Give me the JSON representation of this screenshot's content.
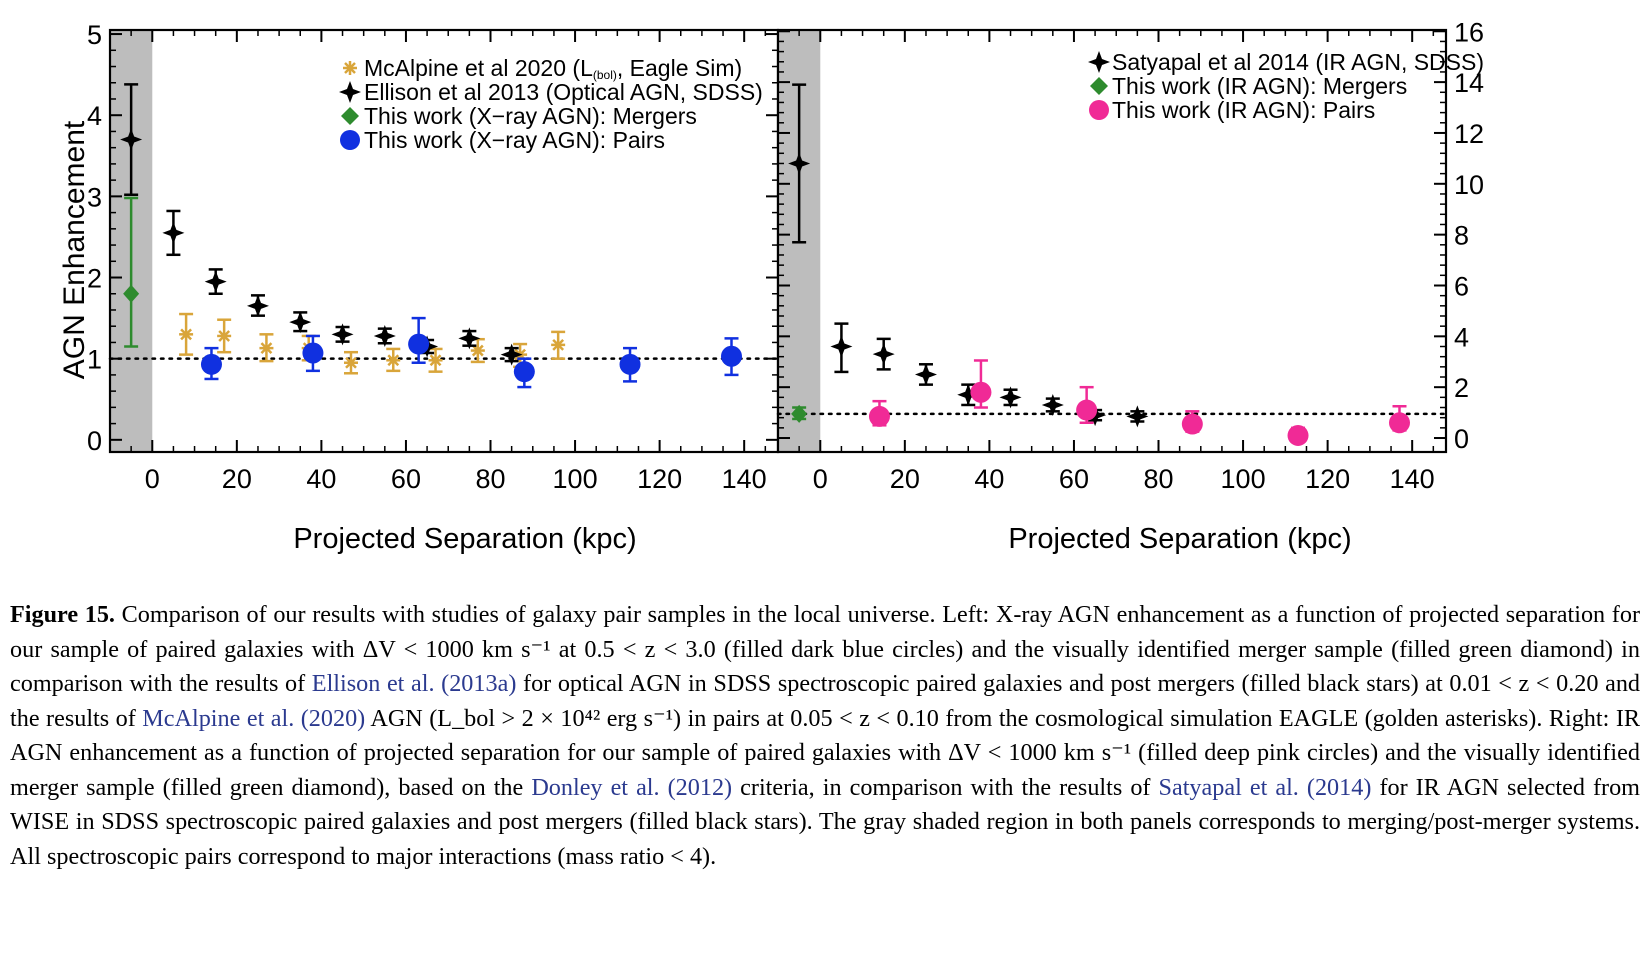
{
  "chart_data": [
    {
      "type": "scatter",
      "panel": "left",
      "xlabel": "Projected Separation (kpc)",
      "ylabel": "AGN Enhancement",
      "xlim": [
        -10,
        148
      ],
      "ylim": [
        -0.15,
        5.05
      ],
      "xticks": [
        0,
        20,
        40,
        60,
        80,
        100,
        120,
        140
      ],
      "yticks": [
        0,
        1,
        2,
        3,
        4,
        5
      ],
      "shaded_region": [
        -10,
        0
      ],
      "reference_line": 1,
      "legend_position": "top-center",
      "series": [
        {
          "name": "McAlpine et al 2020 (L(bol), Eagle Sim)",
          "marker": "asterisk",
          "color": "#d9a53a",
          "points": [
            {
              "x": 8,
              "y": 1.3,
              "lo": 1.05,
              "hi": 1.55
            },
            {
              "x": 17,
              "y": 1.28,
              "lo": 1.08,
              "hi": 1.48
            },
            {
              "x": 27,
              "y": 1.13,
              "lo": 0.97,
              "hi": 1.3
            },
            {
              "x": 37,
              "y": 1.13,
              "lo": 0.98,
              "hi": 1.28
            },
            {
              "x": 47,
              "y": 0.95,
              "lo": 0.82,
              "hi": 1.08
            },
            {
              "x": 57,
              "y": 0.98,
              "lo": 0.85,
              "hi": 1.12
            },
            {
              "x": 67,
              "y": 0.98,
              "lo": 0.84,
              "hi": 1.12
            },
            {
              "x": 77,
              "y": 1.1,
              "lo": 0.96,
              "hi": 1.24
            },
            {
              "x": 87,
              "y": 1.05,
              "lo": 0.9,
              "hi": 1.18
            },
            {
              "x": 96,
              "y": 1.17,
              "lo": 1.0,
              "hi": 1.33
            }
          ]
        },
        {
          "name": "Ellison et al 2013 (Optical AGN, SDSS)",
          "marker": "star",
          "color": "#000000",
          "points": [
            {
              "x": -5,
              "y": 3.7,
              "lo": 3.02,
              "hi": 4.38
            },
            {
              "x": 5,
              "y": 2.55,
              "lo": 2.28,
              "hi": 2.82
            },
            {
              "x": 15,
              "y": 1.95,
              "lo": 1.8,
              "hi": 2.1
            },
            {
              "x": 25,
              "y": 1.65,
              "lo": 1.53,
              "hi": 1.78
            },
            {
              "x": 35,
              "y": 1.45,
              "lo": 1.34,
              "hi": 1.57
            },
            {
              "x": 45,
              "y": 1.3,
              "lo": 1.21,
              "hi": 1.39
            },
            {
              "x": 55,
              "y": 1.28,
              "lo": 1.19,
              "hi": 1.37
            },
            {
              "x": 65,
              "y": 1.15,
              "lo": 1.07,
              "hi": 1.23
            },
            {
              "x": 75,
              "y": 1.25,
              "lo": 1.16,
              "hi": 1.34
            },
            {
              "x": 85,
              "y": 1.05,
              "lo": 0.97,
              "hi": 1.13
            }
          ]
        },
        {
          "name": "This work (X−ray AGN): Mergers",
          "marker": "diamond",
          "color": "#2e8b2e",
          "points": [
            {
              "x": -5,
              "y": 1.8,
              "lo": 1.15,
              "hi": 2.98
            }
          ]
        },
        {
          "name": "This work (X−ray AGN): Pairs",
          "marker": "circle",
          "color": "#1030e0",
          "points": [
            {
              "x": 14,
              "y": 0.93,
              "lo": 0.75,
              "hi": 1.13
            },
            {
              "x": 38,
              "y": 1.07,
              "lo": 0.85,
              "hi": 1.28
            },
            {
              "x": 63,
              "y": 1.18,
              "lo": 0.95,
              "hi": 1.5
            },
            {
              "x": 88,
              "y": 0.84,
              "lo": 0.65,
              "hi": 1.0
            },
            {
              "x": 113,
              "y": 0.93,
              "lo": 0.72,
              "hi": 1.13
            },
            {
              "x": 137,
              "y": 1.03,
              "lo": 0.8,
              "hi": 1.25
            }
          ]
        }
      ]
    },
    {
      "type": "scatter",
      "panel": "right",
      "xlabel": "Projected Separation (kpc)",
      "ylabel": "",
      "xlim": [
        -10,
        148
      ],
      "ylim": [
        -0.55,
        16.05
      ],
      "xticks": [
        0,
        20,
        40,
        60,
        80,
        100,
        120,
        140
      ],
      "yticks": [
        0,
        2,
        4,
        6,
        8,
        10,
        12,
        14,
        16
      ],
      "shaded_region": [
        -10,
        0
      ],
      "reference_line": 0.95,
      "legend_position": "top-right",
      "series": [
        {
          "name": "Satyapal et al 2014 (IR AGN, SDSS)",
          "marker": "star",
          "color": "#000000",
          "points": [
            {
              "x": -5,
              "y": 10.8,
              "lo": 7.7,
              "hi": 13.9
            },
            {
              "x": 5,
              "y": 3.6,
              "lo": 2.6,
              "hi": 4.5
            },
            {
              "x": 15,
              "y": 3.3,
              "lo": 2.7,
              "hi": 3.9
            },
            {
              "x": 25,
              "y": 2.5,
              "lo": 2.1,
              "hi": 2.9
            },
            {
              "x": 35,
              "y": 1.7,
              "lo": 1.3,
              "hi": 2.1
            },
            {
              "x": 45,
              "y": 1.6,
              "lo": 1.3,
              "hi": 1.9
            },
            {
              "x": 55,
              "y": 1.3,
              "lo": 1.05,
              "hi": 1.55
            },
            {
              "x": 65,
              "y": 0.9,
              "lo": 0.7,
              "hi": 1.1
            },
            {
              "x": 75,
              "y": 0.85,
              "lo": 0.65,
              "hi": 1.05
            }
          ]
        },
        {
          "name": "This work (IR AGN): Mergers",
          "marker": "diamond",
          "color": "#2e8b2e",
          "points": [
            {
              "x": -5,
              "y": 0.95,
              "lo": 0.75,
              "hi": 1.2
            }
          ]
        },
        {
          "name": "This work (IR AGN): Pairs",
          "marker": "circle",
          "color": "#f02a96",
          "points": [
            {
              "x": 14,
              "y": 0.85,
              "lo": 0.5,
              "hi": 1.45
            },
            {
              "x": 38,
              "y": 1.8,
              "lo": 1.2,
              "hi": 3.05
            },
            {
              "x": 63,
              "y": 1.1,
              "lo": 0.6,
              "hi": 2.0
            },
            {
              "x": 88,
              "y": 0.55,
              "lo": 0.25,
              "hi": 1.05
            },
            {
              "x": 113,
              "y": 0.1,
              "lo": -0.1,
              "hi": 0.4
            },
            {
              "x": 137,
              "y": 0.6,
              "lo": 0.3,
              "hi": 1.25
            }
          ]
        }
      ]
    }
  ],
  "legend_left": {
    "mcalpine_a": "McAlpine et al 2020 (L",
    "mcalpine_sub": "(bol)",
    "mcalpine_b": ", Eagle Sim)",
    "ellison": "Ellison et al 2013 (Optical AGN, SDSS)",
    "mergers": "This work (X−ray AGN): Mergers",
    "pairs": "This work (X−ray AGN): Pairs"
  },
  "legend_right": {
    "satyapal": "Satyapal et al 2014 (IR AGN, SDSS)",
    "mergers": "This work (IR AGN): Mergers",
    "pairs": "This work (IR AGN): Pairs"
  },
  "caption": {
    "label": "Figure 15.",
    "t1": "Comparison of our results with studies of galaxy pair samples in the local universe. Left: X-ray AGN enhancement as a function of projected separation for our sample of paired galaxies with ΔV < 1000 km s⁻¹ at 0.5 < z < 3.0 (filled dark blue circles) and the visually identified merger sample (filled green diamond) in comparison with the results of",
    "ref1a": "Ellison et al.",
    "ref1b": "(2013a)",
    "t2": "for optical AGN in SDSS spectroscopic paired galaxies and post mergers (filled black stars) at 0.01 < z < 0.20 and the results of",
    "ref2a": "McAlpine et al.",
    "ref2b": "(2020)",
    "t3": "AGN (L_bol > 2 × 10⁴² erg s⁻¹) in pairs at 0.05 < z < 0.10 from the cosmological simulation EAGLE (golden asterisks). Right: IR AGN enhancement as a function of projected separation for our sample of paired galaxies with ΔV < 1000 km s⁻¹ (filled deep pink circles) and the visually identified merger sample (filled green diamond), based on the",
    "ref3a": "Donley et al.",
    "ref3b": "(2012)",
    "t4": "criteria, in comparison with the results of",
    "ref4a": "Satyapal et al.",
    "ref4b": "(2014)",
    "t5": "for IR AGN selected from WISE in SDSS spectroscopic paired galaxies and post mergers (filled black stars). The gray shaded region in both panels corresponds to merging/post-merger systems. All spectroscopic pairs correspond to major interactions (mass ratio < 4)."
  }
}
